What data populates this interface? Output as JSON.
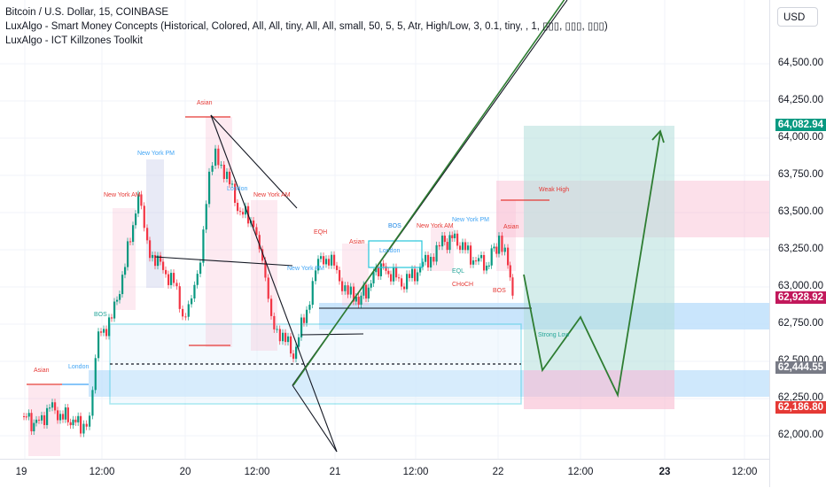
{
  "legend": {
    "symbol_line": "Bitcoin / U.S. Dollar, 15, COINBASE",
    "indicator_1": "LuxAlgo - Smart Money Concepts (Historical, Colored, All, All, tiny, All, All, small, 50, 5, 5, Atr, High/Low, 3, 0.1, tiny, , 1, ▯▯▯, ▯▯▯, ▯▯▯)",
    "indicator_2": "LuxAlgo - ICT Killzones Toolkit"
  },
  "price_axis": {
    "currency": "USD",
    "ticks": [
      "64,500.00",
      "64,250.00",
      "64,000.00",
      "63,750.00",
      "63,500.00",
      "63,250.00",
      "63,000.00",
      "62,750.00",
      "62,500.00",
      "62,250.00",
      "62,000.00"
    ],
    "labels": [
      {
        "text": "64,082.94",
        "color": "#089981"
      },
      {
        "text": "62,928.92",
        "color": "#c2185b"
      },
      {
        "text": "62,444.55",
        "color": "#787b86"
      },
      {
        "text": "62,186.80",
        "color": "#e53935"
      }
    ]
  },
  "time_axis": {
    "ticks": [
      {
        "text": "19",
        "bold": false
      },
      {
        "text": "12:00",
        "bold": false
      },
      {
        "text": "20",
        "bold": false
      },
      {
        "text": "12:00",
        "bold": false
      },
      {
        "text": "21",
        "bold": false
      },
      {
        "text": "12:00",
        "bold": false
      },
      {
        "text": "22",
        "bold": false
      },
      {
        "text": "12:00",
        "bold": false
      },
      {
        "text": "23",
        "bold": true
      },
      {
        "text": "12:00",
        "bold": false
      }
    ]
  },
  "annotations": [
    "Asian",
    "London",
    "New York AM",
    "New York PM",
    "Asian",
    "London",
    "New York AM",
    "New York PM",
    "EQH",
    "Asian",
    "London",
    "BOS",
    "New York AM",
    "New York PM",
    "Asian",
    "Weak High",
    "Strong Low",
    "BOS",
    "CHoCH",
    "EQL",
    "EQH",
    "CHoCH",
    "BOS",
    "CHoCH",
    "BOS"
  ],
  "colors": {
    "up": "#089981",
    "down": "#f23645",
    "trend": "#2e7d32",
    "tp": "#b2dfdb",
    "sl": "#f8bbd0"
  }
}
